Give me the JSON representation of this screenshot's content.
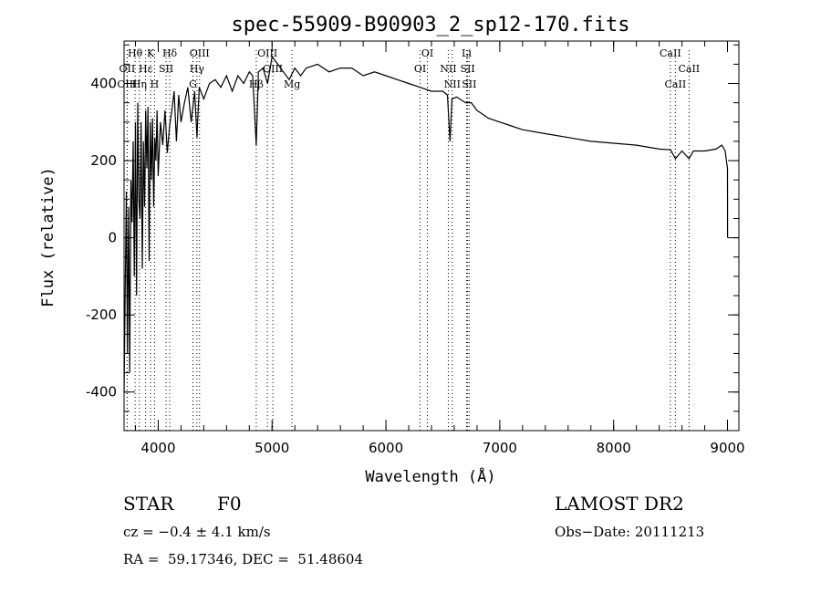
{
  "chart_data": {
    "type": "line",
    "title": "spec-55909-B90903_2_sp12-170.fits",
    "xlabel": "Wavelength (Å)",
    "ylabel": "Flux (relative)",
    "xlim": [
      3700,
      9100
    ],
    "ylim": [
      -500,
      510
    ],
    "xticks": [
      4000,
      5000,
      6000,
      7000,
      8000,
      9000
    ],
    "yticks": [
      -400,
      -200,
      0,
      200,
      400
    ],
    "grid": false,
    "legend": "none",
    "series": [
      {
        "x": [
          3700,
          3710,
          3720,
          3730,
          3740,
          3750,
          3760,
          3770,
          3780,
          3790,
          3800,
          3810,
          3820,
          3830,
          3840,
          3850,
          3860,
          3870,
          3880,
          3890,
          3900,
          3910,
          3920,
          3930,
          3940,
          3950,
          3960,
          3970,
          3980,
          3990,
          4000,
          4020,
          4040,
          4060,
          4080,
          4100,
          4120,
          4140,
          4160,
          4180,
          4200,
          4230,
          4260,
          4290,
          4320,
          4340,
          4360,
          4400,
          4450,
          4500,
          4550,
          4600,
          4650,
          4700,
          4750,
          4800,
          4830,
          4861,
          4880,
          4920,
          4960,
          5000,
          5050,
          5100,
          5150,
          5200,
          5250,
          5300,
          5400,
          5500,
          5600,
          5700,
          5800,
          5900,
          6000,
          6100,
          6200,
          6300,
          6400,
          6500,
          6540,
          6563,
          6580,
          6620,
          6700,
          6750,
          6800,
          6850,
          6900,
          7000,
          7100,
          7200,
          7400,
          7600,
          7800,
          8000,
          8200,
          8400,
          8500,
          8542,
          8600,
          8662,
          8700,
          8800,
          8900,
          8950,
          8980,
          8990,
          9000,
          9001
        ],
        "y": [
          -400,
          -150,
          120,
          -300,
          80,
          -350,
          150,
          40,
          250,
          -100,
          300,
          -150,
          350,
          100,
          50,
          300,
          -80,
          250,
          80,
          330,
          180,
          340,
          -60,
          300,
          150,
          310,
          80,
          260,
          200,
          330,
          160,
          300,
          240,
          330,
          220,
          290,
          330,
          380,
          250,
          370,
          300,
          350,
          390,
          300,
          380,
          260,
          390,
          360,
          400,
          410,
          390,
          420,
          380,
          420,
          400,
          430,
          420,
          240,
          430,
          440,
          400,
          470,
          450,
          430,
          410,
          440,
          420,
          440,
          450,
          430,
          440,
          440,
          420,
          430,
          420,
          410,
          400,
          390,
          380,
          380,
          370,
          250,
          360,
          365,
          350,
          350,
          330,
          320,
          310,
          300,
          290,
          280,
          270,
          260,
          250,
          245,
          240,
          230,
          228,
          205,
          225,
          205,
          225,
          225,
          230,
          240,
          225,
          200,
          180,
          0
        ]
      }
    ],
    "lines": [
      {
        "label": "Hθ",
        "x": 3797,
        "row": 0
      },
      {
        "label": "OII",
        "x": 3727,
        "row": 1
      },
      {
        "label": "OIII",
        "x": 3727,
        "row": 2
      },
      {
        "label": "K",
        "x": 3933,
        "row": 0
      },
      {
        "label": "Hε",
        "x": 3889,
        "row": 1
      },
      {
        "label": "Hη",
        "x": 3835,
        "row": 2
      },
      {
        "label": "H",
        "x": 3968,
        "row": 2
      },
      {
        "label": "Hδ",
        "x": 4101,
        "row": 0
      },
      {
        "label": "SII",
        "x": 4069,
        "row": 1
      },
      {
        "label": "OIII",
        "x": 4363,
        "row": 0
      },
      {
        "label": "Hγ",
        "x": 4340,
        "row": 1
      },
      {
        "label": "G",
        "x": 4305,
        "row": 2
      },
      {
        "label": "OIII",
        "x": 4959,
        "row": 0
      },
      {
        "label": "OIII",
        "x": 5007,
        "row": 1
      },
      {
        "label": "Hβ",
        "x": 4861,
        "row": 2
      },
      {
        "label": "Mg",
        "x": 5175,
        "row": 2
      },
      {
        "label": "OI",
        "x": 6364,
        "row": 0
      },
      {
        "label": "OI",
        "x": 6300,
        "row": 1
      },
      {
        "label": "Li",
        "x": 6708,
        "row": 0
      },
      {
        "label": "NII",
        "x": 6548,
        "row": 1
      },
      {
        "label": "NII",
        "x": 6583,
        "row": 2
      },
      {
        "label": "SII",
        "x": 6717,
        "row": 1
      },
      {
        "label": "SII",
        "x": 6731,
        "row": 2
      },
      {
        "label": "CaII",
        "x": 8498,
        "row": 0
      },
      {
        "label": "CaII",
        "x": 8662,
        "row": 1
      },
      {
        "label": "CaII",
        "x": 8542,
        "row": 2
      }
    ]
  },
  "info": {
    "object_type": "STAR",
    "subclass": "F0",
    "cz": "cz = −0.4 ± 4.1 km/s",
    "coords": "RA =  59.17346, DEC =  51.48604",
    "survey": "LAMOST DR2",
    "obs_date": "Obs−Date: 20111213"
  }
}
